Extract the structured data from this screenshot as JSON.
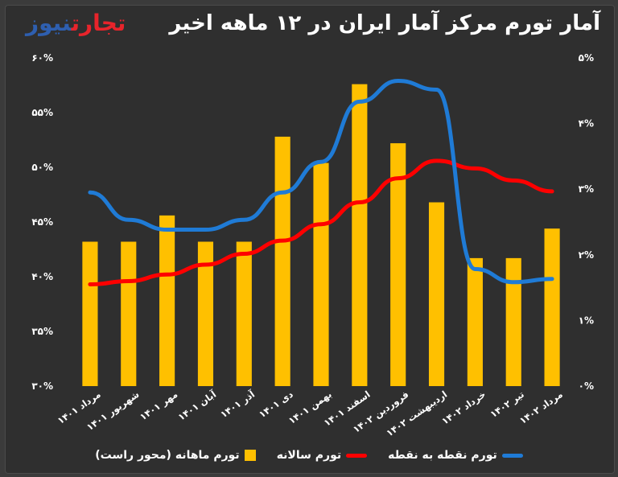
{
  "title": "آمار تورم مرکز آمار ایران در ۱۲ ماهه اخیر",
  "logo": {
    "part1": "تجارت",
    "part2": "نیوز"
  },
  "colors": {
    "bars": "#FFC000",
    "annual": "#FF0000",
    "point": "#1F7BD6",
    "background": "#2f2f2f"
  },
  "chart_data": {
    "type": "bar",
    "categories": [
      "مرداد ۱۴۰۱",
      "شهریور ۱۴۰۱",
      "مهر ۱۴۰۱",
      "آبان ۱۴۰۱",
      "آذر ۱۴۰۱",
      "دی ۱۴۰۱",
      "بهمن ۱۴۰۱",
      "اسفند ۱۴۰۱",
      "فروردین ۱۴۰۲",
      "اردیبهشت ۱۴۰۲",
      "خرداد ۱۴۰۲",
      "تیر ۱۴۰۲",
      "مرداد ۱۴۰۲"
    ],
    "left_axis": {
      "ylim": [
        30,
        60
      ],
      "ticks": [
        "۳۰%",
        "۳۵%",
        "۴۰%",
        "۴۵%",
        "۵۰%",
        "۵۵%",
        "۶۰%"
      ],
      "tick_values": [
        30,
        35,
        40,
        45,
        50,
        55,
        60
      ]
    },
    "right_axis": {
      "ylim": [
        0,
        5
      ],
      "ticks": [
        "۰%",
        "۱%",
        "۲%",
        "۳%",
        "۴%",
        "۵%"
      ],
      "tick_values": [
        0,
        1,
        2,
        3,
        4,
        5
      ]
    },
    "series": [
      {
        "name": "تورم ماهانه (محور راست)",
        "type": "bar",
        "axis": "right",
        "values": [
          2.2,
          2.2,
          2.6,
          2.2,
          2.2,
          3.8,
          3.4,
          4.6,
          3.7,
          2.8,
          1.95,
          1.95,
          2.4
        ]
      },
      {
        "name": "تورم سالانه",
        "type": "line",
        "axis": "left",
        "values": [
          39.3,
          39.6,
          40.2,
          41.1,
          42.1,
          43.3,
          44.8,
          46.8,
          49.0,
          50.6,
          49.9,
          48.8,
          47.8
        ]
      },
      {
        "name": "تورم نقطه به نقطه",
        "type": "line",
        "axis": "left",
        "values": [
          47.7,
          45.2,
          44.3,
          44.3,
          45.2,
          47.7,
          50.5,
          56.0,
          57.9,
          57.1,
          40.7,
          39.5,
          39.8
        ]
      }
    ]
  }
}
